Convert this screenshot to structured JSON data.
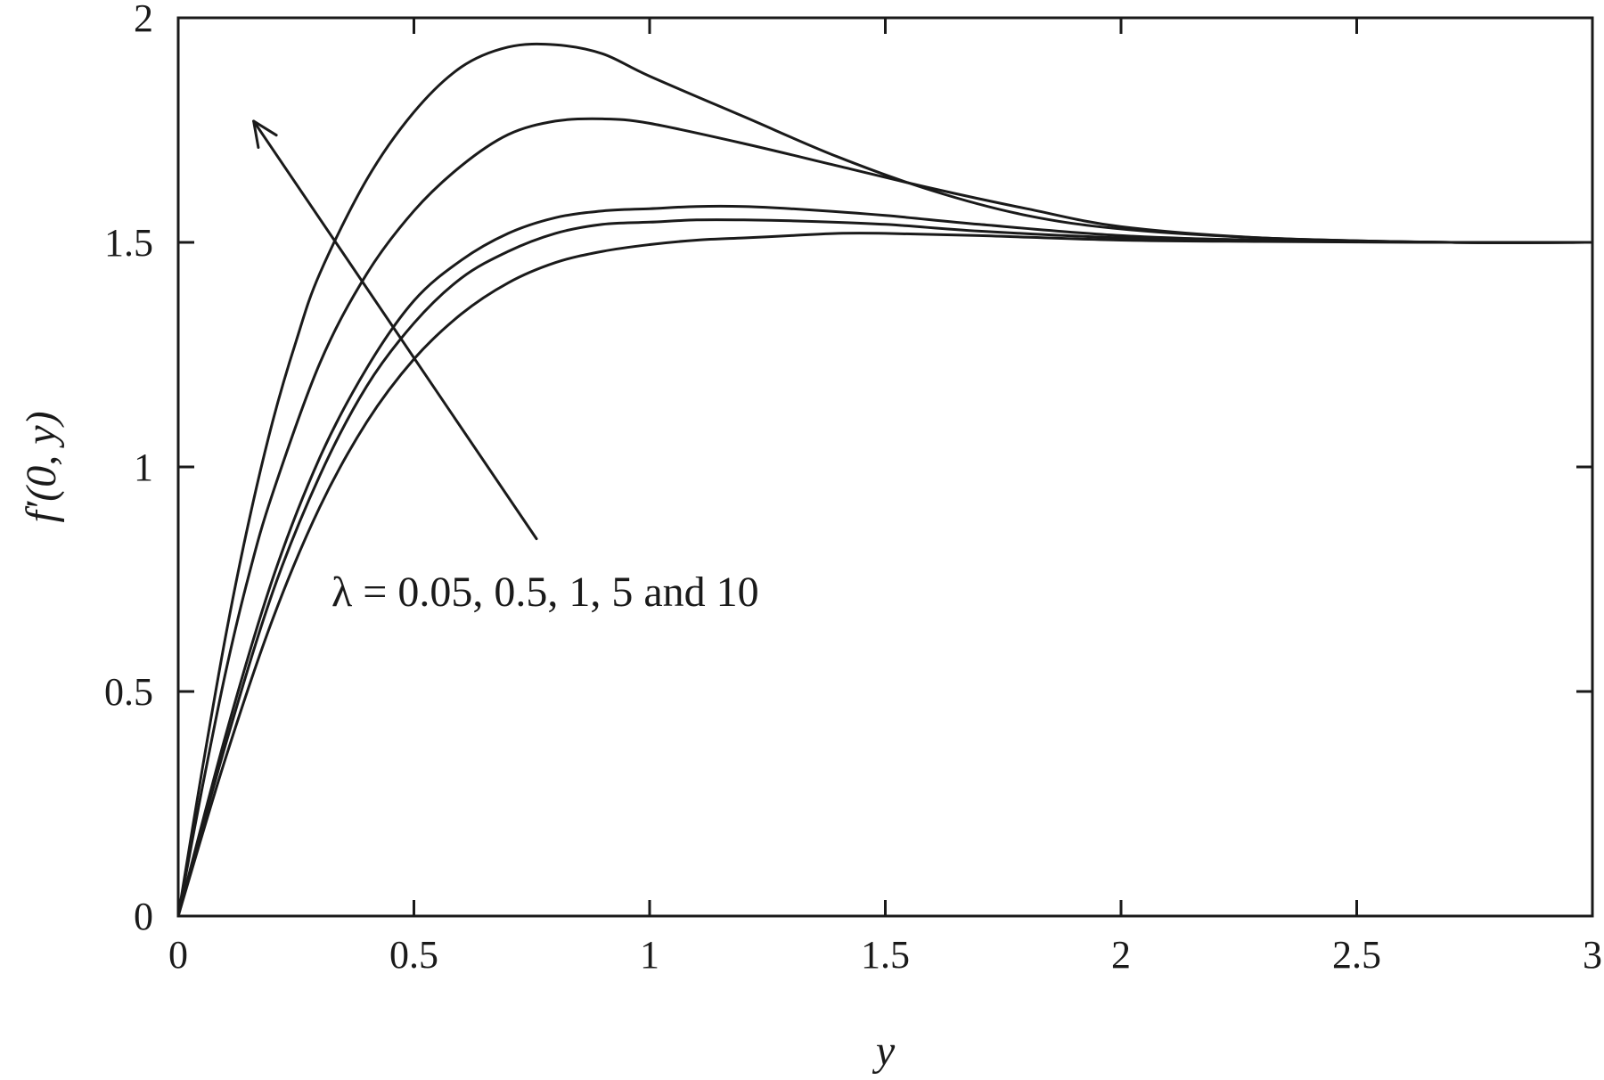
{
  "chart_data": {
    "type": "line",
    "xlabel": "y",
    "ylabel": "f′(0, y)",
    "xlim": [
      0,
      3
    ],
    "ylim": [
      0,
      2
    ],
    "xticks": [
      "0",
      "0.5",
      "1",
      "1.5",
      "2",
      "2.5",
      "3"
    ],
    "yticks": [
      "0",
      "0.5",
      "1",
      "1.5",
      "2"
    ],
    "grid": false,
    "annotation": {
      "text": "λ = 0.05, 0.5, 1, 5 and 10",
      "arrow_from": [
        0.76,
        0.84
      ],
      "arrow_to": [
        0.16,
        1.77
      ]
    },
    "series": [
      {
        "x": [
          0,
          0.1,
          0.2,
          0.3,
          0.4,
          0.5,
          0.6,
          0.7,
          0.8,
          0.9,
          1.0,
          1.1,
          1.2,
          1.3,
          1.4,
          1.5,
          1.7,
          2.0,
          2.3,
          2.7,
          3.0
        ],
        "values": [
          0,
          0.35,
          0.66,
          0.91,
          1.1,
          1.24,
          1.34,
          1.41,
          1.455,
          1.48,
          1.495,
          1.505,
          1.51,
          1.515,
          1.52,
          1.52,
          1.515,
          1.505,
          1.502,
          1.5,
          1.5
        ]
      },
      {
        "x": [
          0,
          0.1,
          0.2,
          0.3,
          0.4,
          0.5,
          0.6,
          0.7,
          0.8,
          0.9,
          1.0,
          1.1,
          1.2,
          1.3,
          1.5,
          1.7,
          2.0,
          2.3,
          2.7,
          3.0
        ],
        "values": [
          0,
          0.38,
          0.72,
          0.98,
          1.18,
          1.32,
          1.42,
          1.48,
          1.52,
          1.54,
          1.545,
          1.55,
          1.55,
          1.548,
          1.54,
          1.525,
          1.51,
          1.503,
          1.5,
          1.5
        ]
      },
      {
        "x": [
          0,
          0.1,
          0.2,
          0.3,
          0.4,
          0.5,
          0.6,
          0.7,
          0.8,
          0.9,
          1.0,
          1.1,
          1.2,
          1.3,
          1.5,
          1.7,
          2.0,
          2.3,
          2.7,
          3.0
        ],
        "values": [
          0,
          0.4,
          0.75,
          1.02,
          1.22,
          1.37,
          1.46,
          1.52,
          1.555,
          1.57,
          1.575,
          1.58,
          1.58,
          1.575,
          1.56,
          1.54,
          1.515,
          1.505,
          1.5,
          1.5
        ]
      },
      {
        "x": [
          0,
          0.05,
          0.1,
          0.15,
          0.2,
          0.3,
          0.4,
          0.5,
          0.6,
          0.7,
          0.8,
          0.9,
          1.0,
          1.2,
          1.4,
          1.6,
          1.8,
          2.0,
          2.3,
          2.7,
          3.0
        ],
        "values": [
          0,
          0.28,
          0.54,
          0.76,
          0.94,
          1.23,
          1.43,
          1.57,
          1.67,
          1.74,
          1.77,
          1.775,
          1.765,
          1.72,
          1.67,
          1.62,
          1.575,
          1.535,
          1.51,
          1.5,
          1.5
        ]
      },
      {
        "x": [
          0,
          0.05,
          0.1,
          0.15,
          0.2,
          0.25,
          0.3,
          0.4,
          0.5,
          0.6,
          0.7,
          0.8,
          0.9,
          1.0,
          1.2,
          1.4,
          1.6,
          1.8,
          2.0,
          2.3,
          2.7,
          3.0
        ],
        "values": [
          0,
          0.32,
          0.62,
          0.88,
          1.1,
          1.28,
          1.43,
          1.64,
          1.79,
          1.89,
          1.935,
          1.94,
          1.92,
          1.87,
          1.78,
          1.69,
          1.615,
          1.56,
          1.53,
          1.51,
          1.5,
          1.5
        ]
      }
    ]
  }
}
